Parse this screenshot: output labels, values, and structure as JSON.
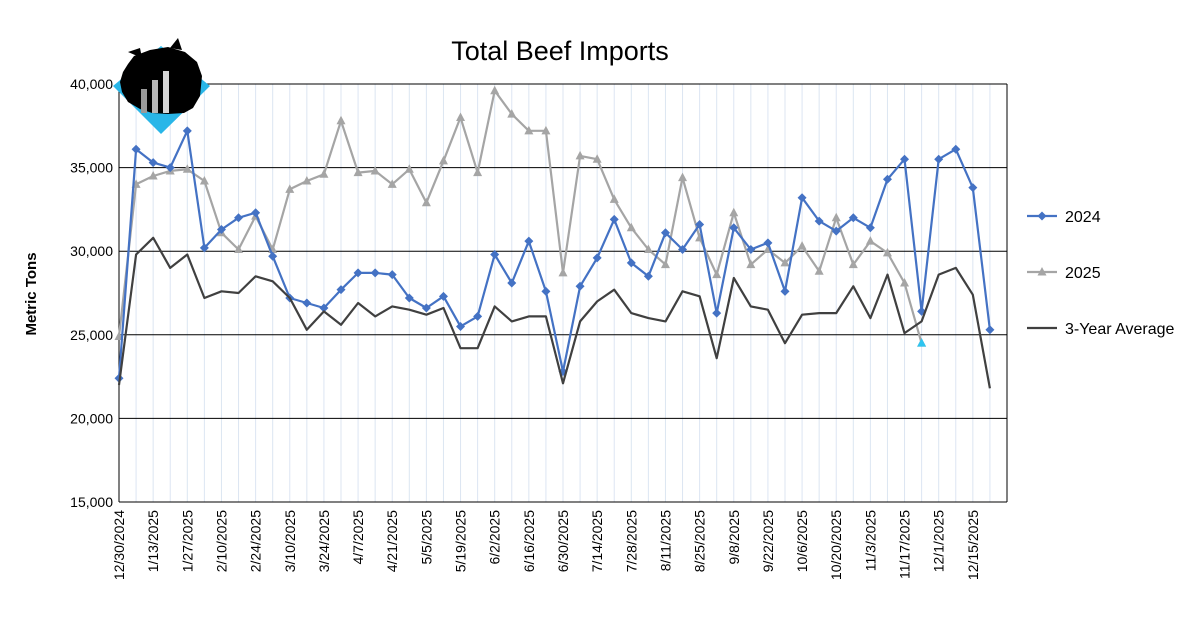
{
  "chart_data": {
    "type": "line",
    "title": "Total Beef Imports",
    "ylabel": "Metric Tons",
    "xlabel": "",
    "ylim": [
      15000,
      40000
    ],
    "yticks": [
      "15,000",
      "20,000",
      "25,000",
      "30,000",
      "35,000",
      "40,000"
    ],
    "ytick_values": [
      15000,
      20000,
      25000,
      30000,
      35000,
      40000
    ],
    "grid": "horizontal major, vertical minor",
    "legend_position": "right",
    "x_tick_labels": [
      "12/30/2024",
      "1/13/2025",
      "1/27/2025",
      "2/10/2025",
      "2/24/2025",
      "3/10/2025",
      "3/24/2025",
      "4/7/2025",
      "4/21/2025",
      "5/5/2025",
      "5/19/2025",
      "6/2/2025",
      "6/16/2025",
      "6/30/2025",
      "7/14/2025",
      "7/28/2025",
      "8/11/2025",
      "8/25/2025",
      "9/8/2025",
      "9/22/2025",
      "10/6/2025",
      "10/20/2025",
      "11/3/2025",
      "11/17/2025",
      "12/1/2025",
      "12/15/2025"
    ],
    "x_count": 53,
    "series": [
      {
        "name": "2024",
        "color": "#4472C4",
        "marker": "diamond",
        "values": [
          22400,
          36100,
          35300,
          35000,
          37200,
          30200,
          31300,
          32000,
          32300,
          29700,
          27200,
          26900,
          26600,
          27700,
          28700,
          28700,
          28600,
          27200,
          26600,
          27300,
          25500,
          26100,
          29800,
          28100,
          30600,
          27600,
          22800,
          27900,
          29600,
          31900,
          29300,
          28500,
          31100,
          30100,
          31600,
          26300,
          31400,
          30100,
          30500,
          27600,
          33200,
          31800,
          31200,
          32000,
          31400,
          34300,
          35500,
          26400,
          35500,
          36100,
          33800,
          25300,
          null
        ]
      },
      {
        "name": "2025",
        "color": "#A5A5A5",
        "marker": "triangle",
        "values": [
          24900,
          34000,
          34500,
          34800,
          34900,
          34200,
          31100,
          30100,
          32100,
          30100,
          33700,
          34200,
          34600,
          37800,
          34700,
          34800,
          34000,
          34900,
          32900,
          35400,
          38000,
          34700,
          39600,
          38200,
          37200,
          37200,
          28700,
          35700,
          35500,
          33100,
          31400,
          30100,
          29200,
          34400,
          30800,
          28600,
          32300,
          29200,
          30100,
          29300,
          30300,
          28800,
          32000,
          29200,
          30600,
          29900,
          28100,
          24500
        ]
      },
      {
        "name": "3-Year Average",
        "color": "#404040",
        "marker": "none",
        "values": [
          22000,
          29800,
          30800,
          29000,
          29800,
          27200,
          27600,
          27500,
          28500,
          28200,
          27200,
          25300,
          26400,
          25600,
          26900,
          26100,
          26700,
          26500,
          26200,
          26600,
          24200,
          24200,
          26700,
          25800,
          26100,
          26100,
          22100,
          25800,
          27000,
          27700,
          26300,
          26000,
          25800,
          27600,
          27300,
          23600,
          28400,
          26700,
          26500,
          24500,
          26200,
          26300,
          26300,
          27900,
          26000,
          28600,
          25100,
          25800,
          28600,
          29000,
          27400,
          21800,
          null
        ]
      }
    ]
  }
}
